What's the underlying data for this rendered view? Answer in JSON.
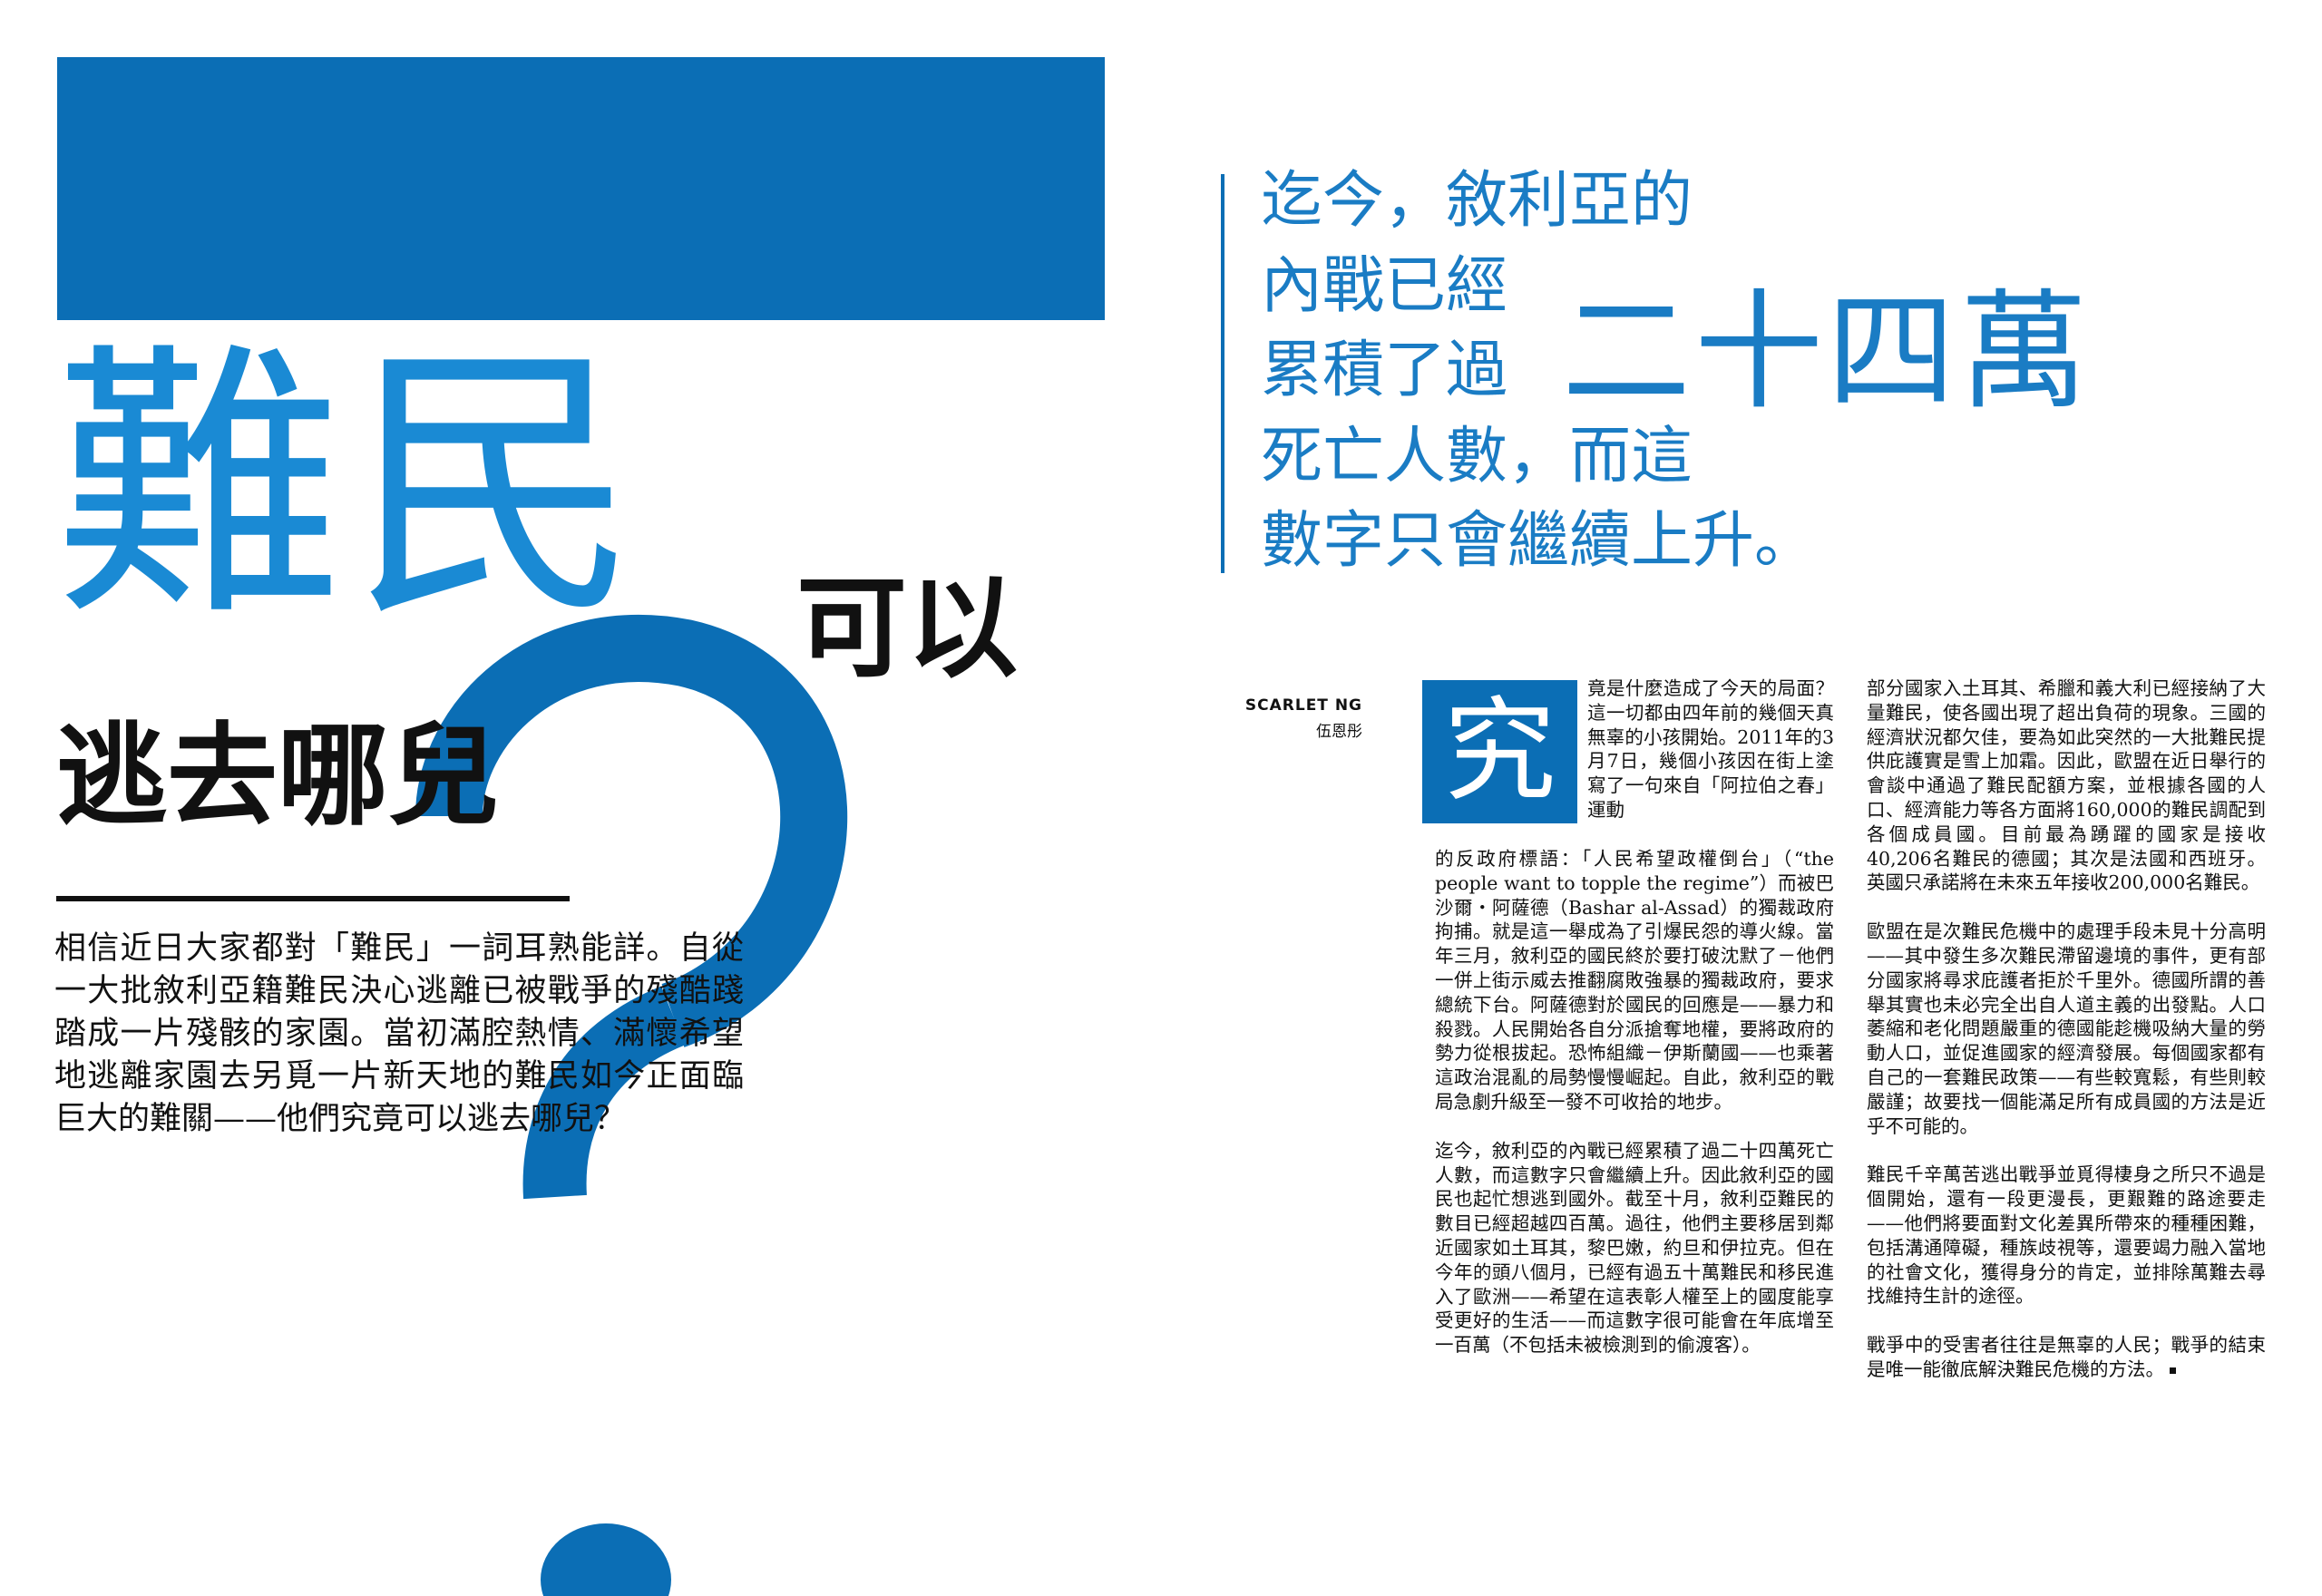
{
  "colors": {
    "accent": "#0b6eb5",
    "accent_light": "#1a8ad4",
    "text": "#111111"
  },
  "title": {
    "main": "難民",
    "sub_line1": "可以",
    "sub_line2": "逃去哪兒"
  },
  "decor": {
    "question_mark": "?"
  },
  "intro": "相信近日大家都對「難民」一詞耳熟能詳。自從一大批敘利亞籍難民決心逃離已被戰爭的殘酷踐踏成一片殘骸的家園。當初滿腔熱情、滿懷希望地逃離家園去另覓一片新天地的難民如今正面臨巨大的難關——他們究竟可以逃去哪兒？",
  "pull_quote": {
    "line1": "迄今，敘利亞的",
    "line2": "內戰已經",
    "line3": "累積了過",
    "big": "二十四萬",
    "line4": "死亡人數，而這",
    "line5": "數字只會繼續上升。"
  },
  "byline": {
    "name": "SCARLET NG",
    "name_cn": "伍恩彤"
  },
  "article": {
    "drop_cap": "究",
    "col1_first": "竟是什麼造成了今天的局面？這一切都由四年前的幾個天真無辜的小孩開始。2011年的3月7日，幾個小孩因在街上塗寫了一句來自「阿拉伯之春」運動",
    "col1_p1_rest": "的反政府標語：「人民希望政權倒台」（“the people want to topple the regime”）而被巴沙爾・阿薩德（Bashar al-Assad）的獨裁政府拘捕。就是這一舉成為了引爆民怨的導火線。當年三月，敘利亞的國民終於要打破沈默了－他們一併上街示威去推翻腐敗強暴的獨裁政府，要求總統下台。阿薩德對於國民的回應是——暴力和殺戮。人民開始各自分派搶奪地權，要將政府的勢力從根拔起。恐怖組織－伊斯蘭國——也乘著這政治混亂的局勢慢慢崛起。自此，敘利亞的戰局急劇升級至一發不可收拾的地步。",
    "col1_p2": "迄今，敘利亞的內戰已經累積了過二十四萬死亡人數，而這數字只會繼續上升。因此敘利亞的國民也起忙想逃到國外。截至十月，敘利亞難民的數目已經超越四百萬。過往，他們主要移居到鄰近國家如土耳其，黎巴嫩，約旦和伊拉克。但在今年的頭八個月，已經有過五十萬難民和移民進入了歐洲——希望在這表彰人權至上的國度能享受更好的生活——而這數字很可能會在年底增至一百萬（不包括未被檢測到的偷渡客）。",
    "col2_p1": "部分國家入土耳其、希臘和義大利已經接納了大量難民，使各國出現了超出負荷的現象。三國的經濟狀況都欠佳，要為如此突然的一大批難民提供庇護實是雪上加霜。因此，歐盟在近日舉行的會談中通過了難民配額方案，並根據各國的人口、經濟能力等各方面將160,000的難民調配到各個成員國。目前最為踴躍的國家是接收40,206名難民的德國；其次是法國和西班牙。英國只承諾將在未來五年接收200,000名難民。",
    "col2_p2": "歐盟在是次難民危機中的處理手段未見十分高明——其中發生多次難民滯留邊境的事件，更有部分國家將尋求庇護者拒於千里外。德國所謂的善舉其實也未必完全出自人道主義的出發點。人口萎縮和老化問題嚴重的德國能趁機吸納大量的勞動人口，並促進國家的經濟發展。每個國家都有自己的一套難民政策——有些較寬鬆，有些則較嚴謹；故要找一個能滿足所有成員國的方法是近乎不可能的。",
    "col2_p3": "難民千辛萬苦逃出戰爭並覓得棲身之所只不過是個開始，還有一段更漫長，更艱難的路途要走——他們將要面對文化差異所帶來的種種困難，包括溝通障礙，種族歧視等，還要竭力融入當地的社會文化，獲得身分的肯定，並排除萬難去尋找維持生計的途徑。",
    "col2_p4": "戰爭中的受害者往往是無辜的人民；戰爭的結束是唯一能徹底解決難民危機的方法。"
  }
}
